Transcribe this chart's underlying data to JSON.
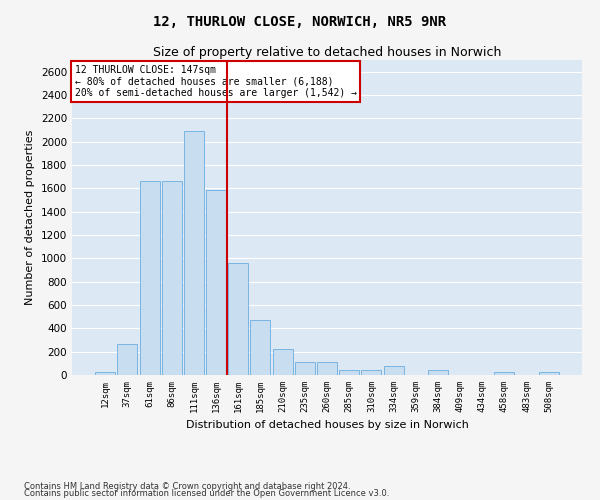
{
  "title1": "12, THURLOW CLOSE, NORWICH, NR5 9NR",
  "title2": "Size of property relative to detached houses in Norwich",
  "xlabel": "Distribution of detached houses by size in Norwich",
  "ylabel": "Number of detached properties",
  "footer1": "Contains HM Land Registry data © Crown copyright and database right 2024.",
  "footer2": "Contains public sector information licensed under the Open Government Licence v3.0.",
  "annotation_line1": "12 THURLOW CLOSE: 147sqm",
  "annotation_line2": "← 80% of detached houses are smaller (6,188)",
  "annotation_line3": "20% of semi-detached houses are larger (1,542) →",
  "bar_color": "#c9ddf0",
  "bar_edge_color": "#6aaee0",
  "bg_color": "#dde8f5",
  "grid_color": "#ffffff",
  "fig_bg_color": "#f5f5f5",
  "vline_color": "#cc0000",
  "annotation_box_color": "#cc0000",
  "categories": [
    "12sqm",
    "37sqm",
    "61sqm",
    "86sqm",
    "111sqm",
    "136sqm",
    "161sqm",
    "185sqm",
    "210sqm",
    "235sqm",
    "260sqm",
    "285sqm",
    "310sqm",
    "334sqm",
    "359sqm",
    "384sqm",
    "409sqm",
    "434sqm",
    "458sqm",
    "483sqm",
    "508sqm"
  ],
  "values": [
    25,
    265,
    1660,
    1660,
    2090,
    1590,
    960,
    470,
    225,
    115,
    110,
    45,
    45,
    80,
    0,
    45,
    0,
    0,
    25,
    0,
    25
  ],
  "ylim": [
    0,
    2700
  ],
  "yticks": [
    0,
    200,
    400,
    600,
    800,
    1000,
    1200,
    1400,
    1600,
    1800,
    2000,
    2200,
    2400,
    2600
  ],
  "vline_x": 5.5,
  "title1_fontsize": 10,
  "title2_fontsize": 9,
  "xlabel_fontsize": 8,
  "ylabel_fontsize": 8,
  "xtick_fontsize": 6.5,
  "ytick_fontsize": 7.5,
  "footer_fontsize": 6,
  "annot_fontsize": 7
}
